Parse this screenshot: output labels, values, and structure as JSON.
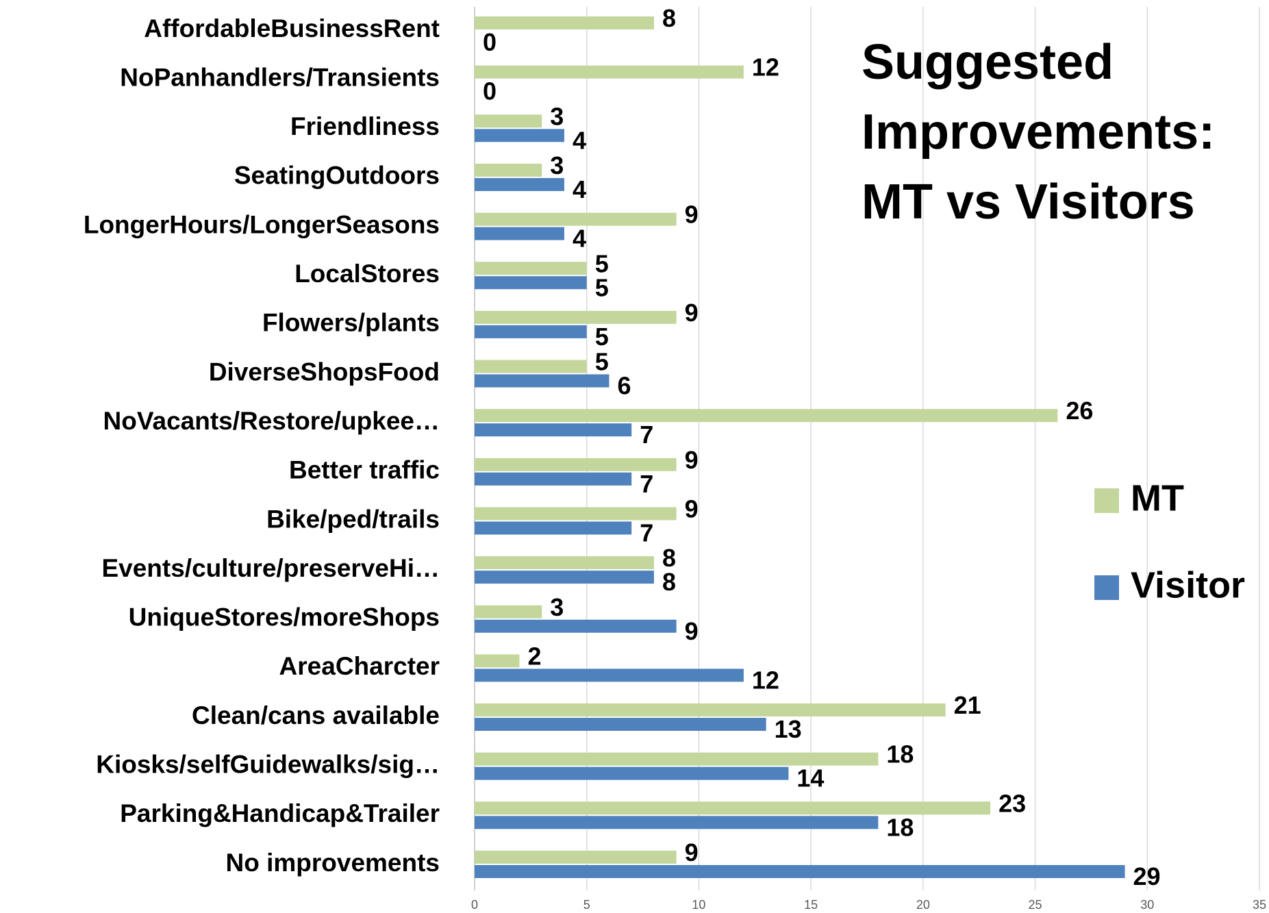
{
  "chart_data": {
    "type": "bar",
    "orientation": "horizontal",
    "title": "Suggested Improvements: MT vs Visitors",
    "categories": [
      "AffordableBusinessRent",
      "NoPanhandlers/Transients",
      "Friendliness",
      "SeatingOutdoors",
      "LongerHours/LongerSeasons",
      "LocalStores",
      "Flowers/plants",
      "DiverseShopsFood",
      "NoVacants/Restore/upkee…",
      "Better traffic",
      "Bike/ped/trails",
      "Events/culture/preserveHi…",
      "UniqueStores/moreShops",
      "AreaCharcter",
      "Clean/cans available",
      "Kiosks/selfGuidewalks/sig…",
      "Parking&Handicap&Trailer",
      "No improvements"
    ],
    "series": [
      {
        "name": "MT",
        "color": "#c3d69b",
        "values": [
          8,
          12,
          3,
          3,
          9,
          5,
          9,
          5,
          26,
          9,
          9,
          8,
          3,
          2,
          21,
          18,
          23,
          9
        ]
      },
      {
        "name": "Visitor",
        "color": "#4f81bd",
        "values": [
          0,
          0,
          4,
          4,
          4,
          5,
          5,
          6,
          7,
          7,
          7,
          8,
          9,
          12,
          13,
          14,
          18,
          29
        ]
      }
    ],
    "xlim": [
      0,
      35
    ],
    "xticks": [
      0,
      5,
      10,
      15,
      20,
      25,
      30,
      35
    ],
    "grid": true,
    "legend": "right"
  }
}
